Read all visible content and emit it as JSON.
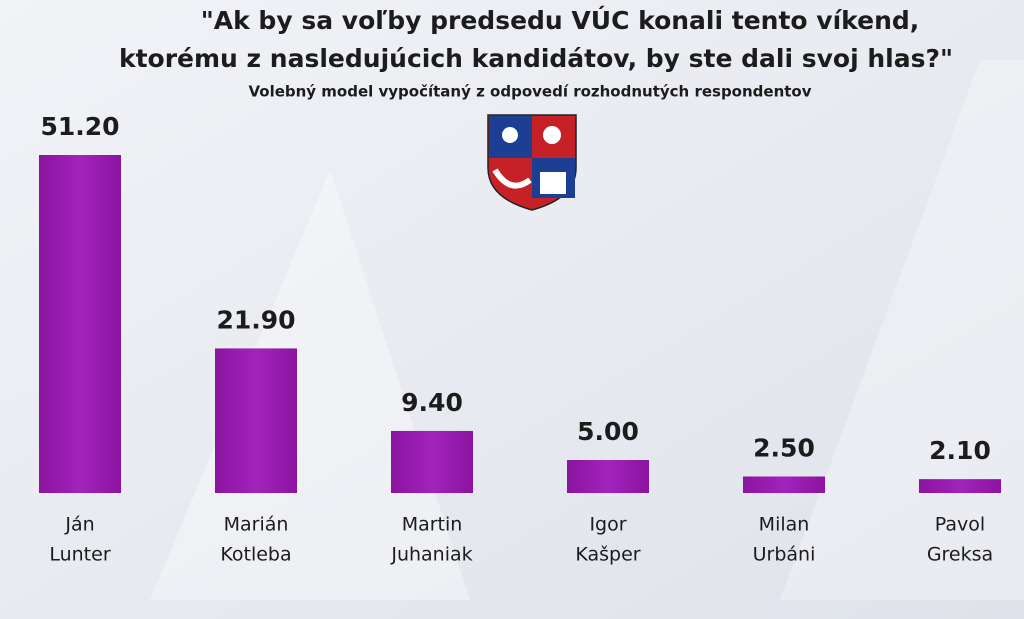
{
  "chart_data": {
    "type": "bar",
    "title": [
      "\"Ak by sa voľby predsedu VÚC konali tento víkend,",
      "ktorému z nasledujúcich kandidátov, by ste dali svoj hlas?\""
    ],
    "subtitle": "Volebný model vypočítaný z odpovedí rozhodnutých respondentov",
    "categories": [
      [
        "Ján",
        "Lunter"
      ],
      [
        "Marián",
        "Kotleba"
      ],
      [
        "Martin",
        "Juhaniak"
      ],
      [
        "Igor",
        "Kašper"
      ],
      [
        "Milan",
        "Urbáni"
      ],
      [
        "Pavol",
        "Greksa"
      ]
    ],
    "values": [
      51.2,
      21.9,
      9.4,
      5.0,
      2.5,
      2.1
    ],
    "value_labels": [
      "51.20",
      "21.90",
      "9.40",
      "5.00",
      "2.50",
      "2.10"
    ],
    "color": "#9a1db2"
  }
}
